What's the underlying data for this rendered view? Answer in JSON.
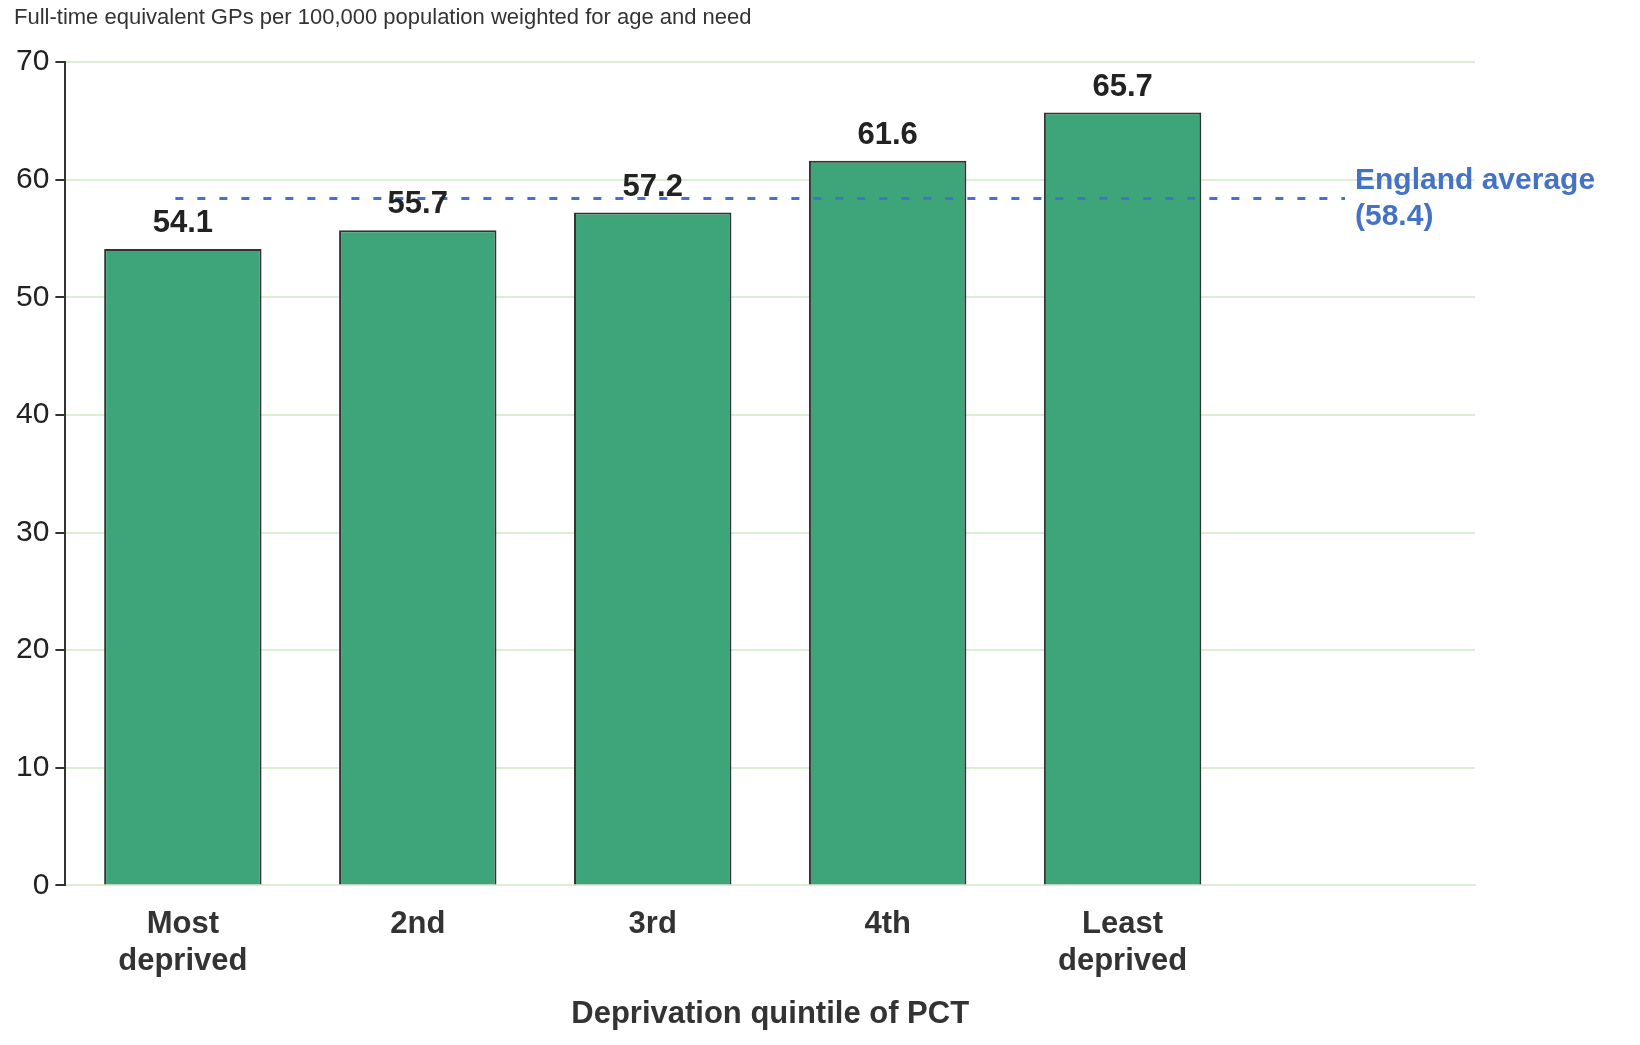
{
  "chart_data": {
    "type": "bar",
    "title": "Full-time equivalent GPs per 100,000 population weighted for age and need",
    "xlabel": "Deprivation quintile of PCT",
    "categories": [
      "Most deprived",
      "2nd",
      "3rd",
      "4th",
      "Least deprived",
      null
    ],
    "values": [
      54.1,
      55.7,
      57.2,
      61.6,
      65.7,
      null
    ],
    "color": "#3ea57a",
    "ylim": [
      0,
      70
    ],
    "yticks": [
      0,
      10,
      20,
      30,
      40,
      50,
      60,
      70
    ],
    "grid": "y",
    "data_labels": true,
    "ref_lines": [
      {
        "axis": "y",
        "value": 58.4,
        "label": "England average (58.4)",
        "color": "#4472c4",
        "line_style": "dashed"
      }
    ]
  }
}
